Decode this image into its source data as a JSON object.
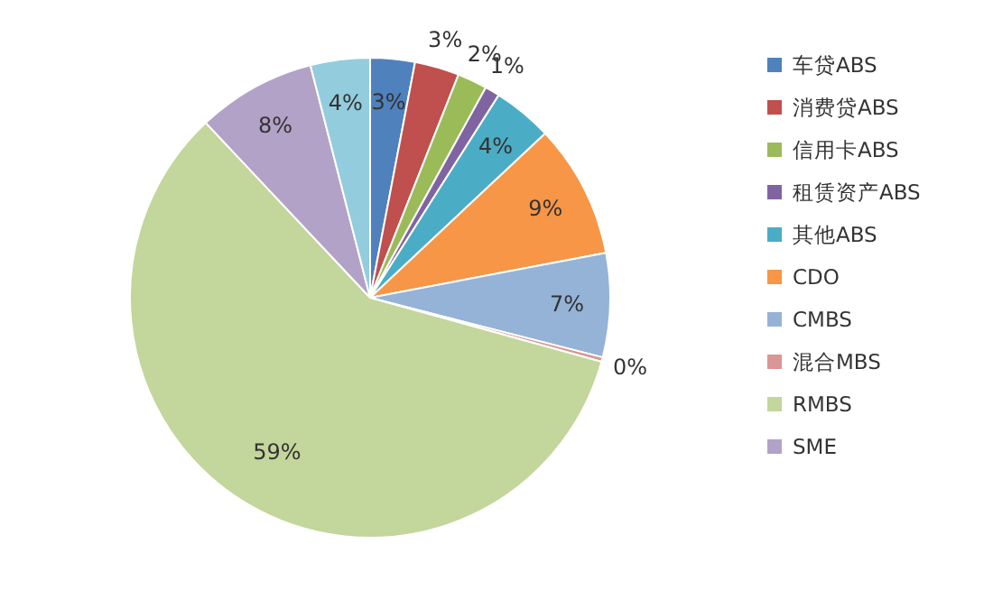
{
  "chart_data": {
    "type": "pie",
    "categories": [
      "车贷ABS",
      "消费贷ABS",
      "信用卡ABS",
      "租赁资产ABS",
      "其他ABS",
      "CDO",
      "CMBS",
      "混合MBS",
      "RMBS",
      "SME",
      null
    ],
    "values": [
      3,
      3,
      2,
      1,
      4,
      9,
      7,
      0.3,
      58.7,
      8,
      4
    ],
    "value_labels": [
      "3%",
      "3%",
      "2%",
      "1%",
      "4%",
      "9%",
      "7%",
      "0%",
      "59%",
      "8%",
      "4%"
    ],
    "colors": [
      "#4f81bd",
      "#c0504d",
      "#9bbb59",
      "#8064a2",
      "#4bacc6",
      "#f79646",
      "#95b3d7",
      "#d99694",
      "#c3d69b",
      "#b3a2c7",
      "#93cddd"
    ],
    "legend": "right"
  }
}
